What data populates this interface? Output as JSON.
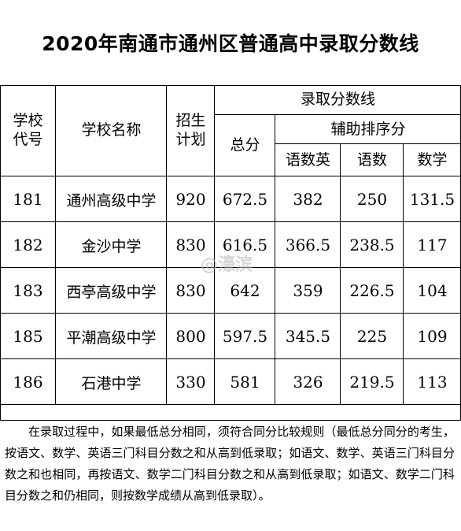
{
  "title": "2020年南通市通州区普通高中录取分数线",
  "headers": {
    "code": "学校\n代号",
    "name": "学校名称",
    "plan": "招生\n计划",
    "cutoff_group": "录取分数线",
    "total": "总分",
    "aux_group": "辅助排序分",
    "cme": "语数英",
    "cm": "语数",
    "math": "数学"
  },
  "rows": [
    {
      "code": "181",
      "name": "通州高级中学",
      "plan": "920",
      "total": "672.5",
      "cme": "382",
      "cm": "250",
      "math": "131.5"
    },
    {
      "code": "182",
      "name": "金沙中学",
      "plan": "830",
      "total": "616.5",
      "cme": "366.5",
      "cm": "238.5",
      "math": "117"
    },
    {
      "code": "183",
      "name": "西亭高级中学",
      "plan": "830",
      "total": "642",
      "cme": "359",
      "cm": "226.5",
      "math": "104"
    },
    {
      "code": "185",
      "name": "平潮高级中学",
      "plan": "800",
      "total": "597.5",
      "cme": "345.5",
      "cm": "225",
      "math": "109"
    },
    {
      "code": "186",
      "name": "石港中学",
      "plan": "330",
      "total": "581",
      "cme": "326",
      "cm": "219.5",
      "math": "113"
    }
  ],
  "note": "在录取过程中，如果最低总分相同，须符合同分比较规则（最低总分同分的考生，按语文、数学、英语三门科目分数之和从高到低录取；如语文、数学、英语三门科目分数之和也相同，再按语文、数学二门科目分数之和从高到低录取；如语文、数学二门科目分数之和仍相同，则按数学成绩从高到低录取）。",
  "watermark": "@濠滨"
}
